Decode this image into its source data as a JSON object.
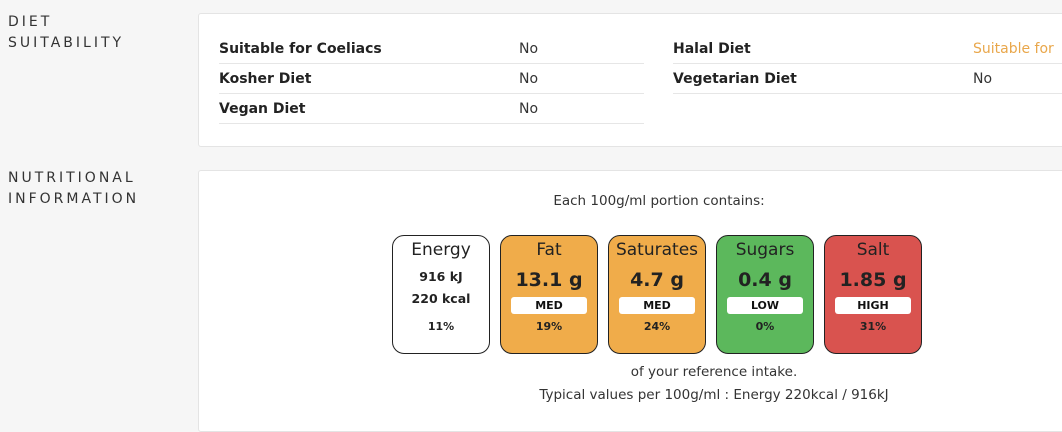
{
  "diet": {
    "title_line1": "DIET",
    "title_line2": "SUITABILITY",
    "left": [
      {
        "label": "Suitable for Coeliacs",
        "value": "No"
      },
      {
        "label": "Kosher Diet",
        "value": "No"
      },
      {
        "label": "Vegan Diet",
        "value": "No"
      }
    ],
    "right": [
      {
        "label": "Halal Diet",
        "value": "Suitable for"
      },
      {
        "label": "Vegetarian Diet",
        "value": "No"
      }
    ]
  },
  "nutrition": {
    "title_line1": "NUTRITIONAL",
    "title_line2": "INFORMATION",
    "heading": "Each 100g/ml portion contains:",
    "energy": {
      "name": "Energy",
      "kj": "916 kJ",
      "kcal": "220 kcal",
      "pct": "11%",
      "color": "#ffffff"
    },
    "items": [
      {
        "name": "Fat",
        "amount": "13.1 g",
        "level": "MED",
        "pct": "19%",
        "color": "#f0ac4a"
      },
      {
        "name": "Saturates",
        "amount": "4.7 g",
        "level": "MED",
        "pct": "24%",
        "color": "#f0ac4a"
      },
      {
        "name": "Sugars",
        "amount": "0.4 g",
        "level": "LOW",
        "pct": "0%",
        "color": "#5cb85c"
      },
      {
        "name": "Salt",
        "amount": "1.85 g",
        "level": "HIGH",
        "pct": "31%",
        "color": "#d9534f"
      }
    ],
    "reference": "of your reference intake.",
    "typical": "Typical values per 100g/ml : Energy 220kcal / 916kJ"
  }
}
